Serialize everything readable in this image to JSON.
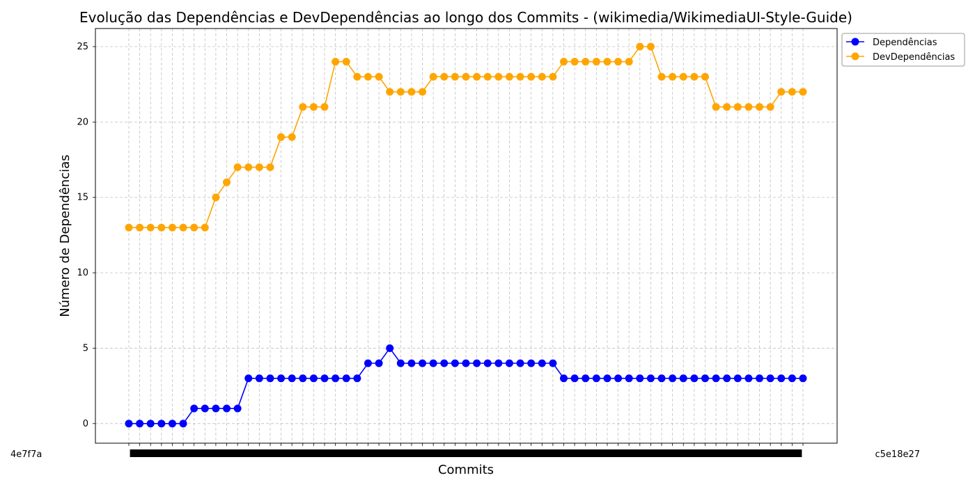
{
  "chart_data": {
    "type": "line",
    "title": "Evolução das Dependências e DevDependências ao longo dos Commits - (wikimedia/WikimediaUI-Style-Guide)",
    "xlabel": "Commits",
    "ylabel": "Número de Dependências",
    "ylim": [
      -1.3,
      26.2
    ],
    "y_ticks": [
      0,
      5,
      10,
      15,
      20,
      25
    ],
    "x_tick_labels_visible": {
      "first": "4e7f7a",
      "last": "c5e18e27"
    },
    "grid": true,
    "grid_style": "dashed",
    "legend_position": "outside-top-right",
    "colors": {
      "Dependências": "#0000ff",
      "DevDependências": "#ffa500"
    },
    "series": [
      {
        "name": "Dependências",
        "values": [
          0,
          0,
          0,
          0,
          0,
          0,
          1,
          1,
          1,
          1,
          1,
          3,
          3,
          3,
          3,
          3,
          3,
          3,
          3,
          3,
          3,
          3,
          4,
          4,
          5,
          4,
          4,
          4,
          4,
          4,
          4,
          4,
          4,
          4,
          4,
          4,
          4,
          4,
          4,
          4,
          3,
          3,
          3,
          3,
          3,
          3,
          3,
          3,
          3,
          3,
          3,
          3,
          3,
          3,
          3,
          3,
          3,
          3,
          3,
          3,
          3,
          3,
          3
        ]
      },
      {
        "name": "DevDependências",
        "values": [
          13,
          13,
          13,
          13,
          13,
          13,
          13,
          13,
          15,
          16,
          17,
          17,
          17,
          17,
          19,
          19,
          21,
          21,
          21,
          24,
          24,
          23,
          23,
          23,
          22,
          22,
          22,
          22,
          23,
          23,
          23,
          23,
          23,
          23,
          23,
          23,
          23,
          23,
          23,
          23,
          24,
          24,
          24,
          24,
          24,
          24,
          24,
          25,
          25,
          23,
          23,
          23,
          23,
          23,
          21,
          21,
          21,
          21,
          21,
          21,
          22,
          22,
          22
        ]
      }
    ]
  }
}
